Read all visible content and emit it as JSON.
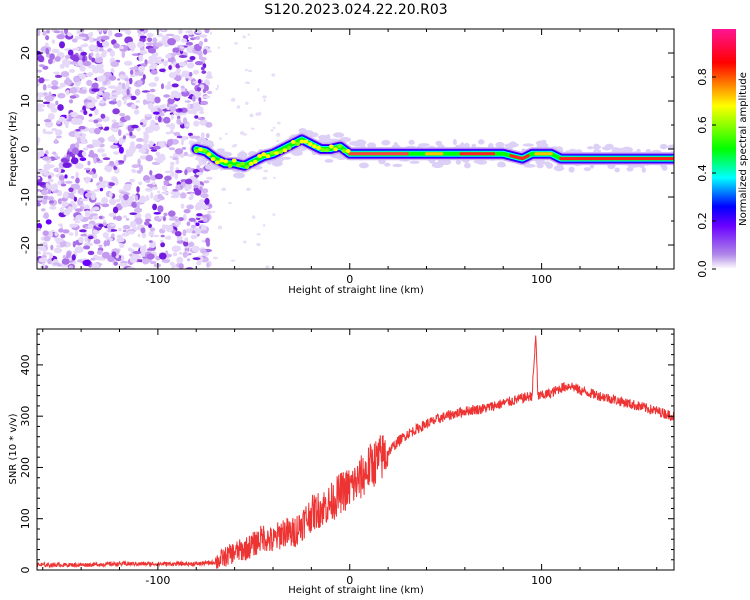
{
  "figure": {
    "title": "S120.2023.024.22.20.R03"
  },
  "chart_data": [
    {
      "type": "heatmap",
      "name": "spectrogram",
      "xlabel": "Height of straight line (km)",
      "ylabel": "Frequency (Hz)",
      "xlim": [
        -163,
        169
      ],
      "ylim": [
        -25,
        25
      ],
      "xticks": [
        -100,
        0,
        100
      ],
      "xtick_labels": [
        "-100",
        "0",
        "100"
      ],
      "yticks": [
        -20,
        -10,
        0,
        10,
        20
      ],
      "ytick_labels": [
        "-20",
        "-10",
        "0",
        "10",
        "20"
      ],
      "noise_region": {
        "x": [
          -163,
          -73
        ],
        "y": [
          -25,
          25
        ]
      },
      "signal_ridge": {
        "x": [
          -80,
          -75,
          -70,
          -65,
          -60,
          -55,
          -50,
          -45,
          -40,
          -35,
          -30,
          -25,
          -20,
          -15,
          -10,
          -5,
          0,
          20,
          40,
          60,
          80,
          85,
          90,
          95,
          100,
          105,
          110,
          130,
          150,
          169
        ],
        "freq": [
          0,
          -0.5,
          -2,
          -3,
          -3,
          -3.5,
          -2.5,
          -1.5,
          -1,
          0,
          1,
          2,
          1,
          0,
          0,
          0.5,
          -1,
          -1,
          -1,
          -1,
          -1,
          -1.5,
          -2,
          -1,
          -1,
          -1,
          -2,
          -2,
          -2,
          -2
        ]
      },
      "colorbar": {
        "label": "Normalized spectral amplitude",
        "range": [
          0,
          1
        ],
        "ticks": [
          0.0,
          0.2,
          0.4,
          0.6,
          0.8
        ],
        "tick_labels": [
          "0.0",
          "0.2",
          "0.4",
          "0.6",
          "0.8"
        ],
        "colors": [
          "#ffffff",
          "#8a2be2",
          "#0000ff",
          "#00ffff",
          "#00ff00",
          "#ffff00",
          "#ff0000",
          "#ff1493"
        ]
      },
      "grid": false
    },
    {
      "type": "line",
      "name": "snr",
      "xlabel": "Height of straight line (km)",
      "ylabel": "SNR (10 * v/v)",
      "xlim": [
        -163,
        169
      ],
      "ylim": [
        0,
        470
      ],
      "xticks": [
        -100,
        0,
        100
      ],
      "xtick_labels": [
        "-100",
        "0",
        "100"
      ],
      "yticks": [
        0,
        100,
        200,
        300,
        400
      ],
      "ytick_labels": [
        "0",
        "100",
        "200",
        "300",
        "400"
      ],
      "series": [
        {
          "color": "#ee3333",
          "x": [
            -163,
            -140,
            -120,
            -100,
            -80,
            -70,
            -65,
            -60,
            -55,
            -50,
            -45,
            -40,
            -35,
            -30,
            -25,
            -20,
            -15,
            -10,
            -5,
            0,
            5,
            10,
            15,
            20,
            25,
            30,
            35,
            40,
            50,
            60,
            70,
            80,
            90,
            95,
            97,
            98,
            100,
            105,
            110,
            115,
            120,
            130,
            140,
            150,
            160,
            169
          ],
          "y": [
            10,
            10,
            12,
            12,
            12,
            15,
            25,
            35,
            40,
            50,
            65,
            55,
            75,
            70,
            90,
            110,
            120,
            130,
            150,
            160,
            175,
            200,
            215,
            230,
            250,
            265,
            275,
            285,
            300,
            310,
            315,
            325,
            335,
            340,
            460,
            340,
            340,
            345,
            355,
            360,
            350,
            340,
            330,
            320,
            310,
            300
          ]
        }
      ],
      "grid": false
    }
  ]
}
